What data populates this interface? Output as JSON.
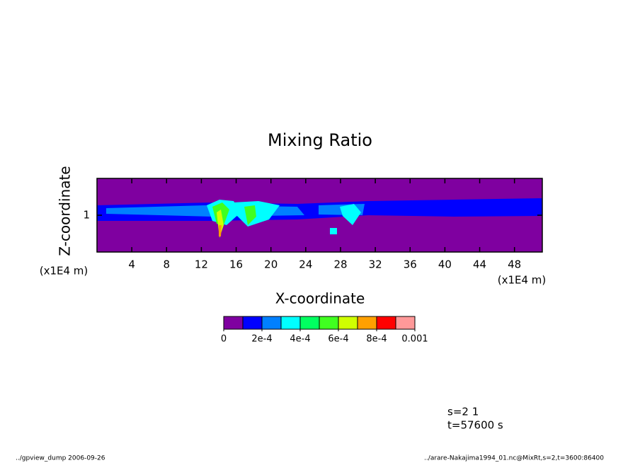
{
  "chart_data": {
    "type": "contour",
    "title": "Mixing Ratio",
    "xlabel": "X-coordinate",
    "ylabel": "Z-coordinate",
    "xunits": "(x1E4 m)",
    "yunits": "(x1E4 m)",
    "xlim": [
      0,
      51.2
    ],
    "ylim": [
      0,
      2
    ],
    "xticks": [
      4,
      8,
      12,
      16,
      20,
      24,
      28,
      32,
      36,
      40,
      44,
      48
    ],
    "yticks": [
      1
    ],
    "colorbar": {
      "levels": [
        0,
        0.0001,
        0.0002,
        0.0003,
        0.0004,
        0.0005,
        0.0006,
        0.0007,
        0.0008,
        0.0009,
        0.001
      ],
      "colors": [
        "#7f00a0",
        "#0000ff",
        "#0080ff",
        "#00ffff",
        "#00ff60",
        "#40ff20",
        "#d0ff00",
        "#ffa000",
        "#ff0000",
        "#ff9999"
      ],
      "ticks": [
        0,
        {
          "value": 0.0002,
          "label": "2e-4"
        },
        {
          "value": 0.0004,
          "label": "4e-4"
        },
        {
          "value": 0.0006,
          "label": "6e-4"
        },
        {
          "value": 0.0008,
          "label": "8e-4"
        },
        0.001
      ]
    },
    "annotations": [
      "s=2 1",
      "t=57600 s",
      "../gpview_dump  2006-09-26",
      "../arare-Nakajima1994_01.nc@MixRt,s=2,t=3600:86400"
    ]
  }
}
